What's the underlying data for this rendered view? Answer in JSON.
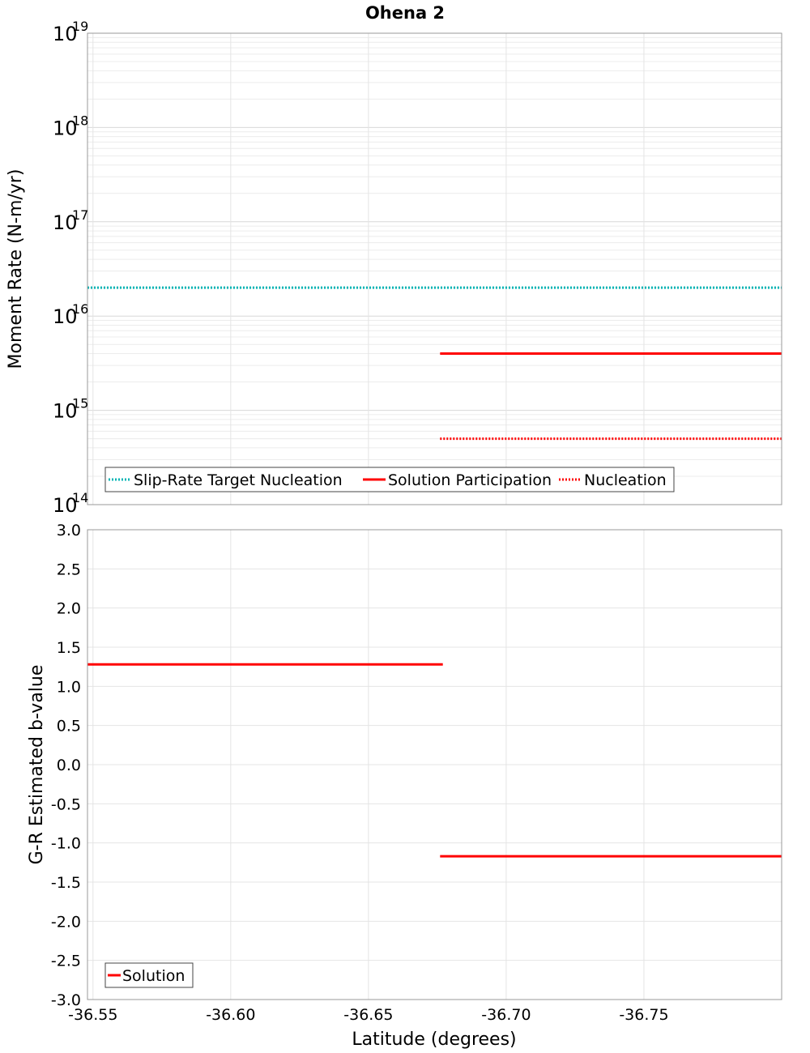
{
  "title": "Ohena 2",
  "chart_data": [
    {
      "type": "line",
      "ylabel": "Moment Rate (N-m/yr)",
      "yscale": "log",
      "ylim": [
        100000000000000.0,
        1e+19
      ],
      "xlim": [
        -36.548,
        -36.8
      ],
      "y_tick_base": "10",
      "y_tick_exponents": [
        "14",
        "15",
        "16",
        "17",
        "18",
        "19"
      ],
      "series": [
        {
          "name": "Slip-Rate Target Nucleation",
          "color": "#00b4b4",
          "style": "dotted",
          "segments": [
            {
              "x": [
                -36.548,
                -36.8
              ],
              "y": [
                2e+16,
                2e+16
              ]
            }
          ]
        },
        {
          "name": "Solution Participation",
          "color": "#ff0000",
          "style": "solid",
          "segments": [
            {
              "x": [
                -36.676,
                -36.8
              ],
              "y": [
                4000000000000000.0,
                4000000000000000.0
              ]
            }
          ]
        },
        {
          "name": "Nucleation",
          "color": "#ff0000",
          "style": "dotted",
          "segments": [
            {
              "x": [
                -36.676,
                -36.8
              ],
              "y": [
                500000000000000.0,
                500000000000000.0
              ]
            }
          ]
        }
      ],
      "legend_position": "bottom-left"
    },
    {
      "type": "line",
      "ylabel": "G-R Estimated b-value",
      "xlabel": "Latitude (degrees)",
      "ylim": [
        -3.0,
        3.0
      ],
      "xlim": [
        -36.548,
        -36.8
      ],
      "y_ticks": [
        "3.0",
        "2.5",
        "2.0",
        "1.5",
        "1.0",
        "0.5",
        "0.0",
        "-0.5",
        "-1.0",
        "-1.5",
        "-2.0",
        "-2.5",
        "-3.0"
      ],
      "x_ticks": [
        "-36.55",
        "-36.60",
        "-36.65",
        "-36.70",
        "-36.75"
      ],
      "series": [
        {
          "name": "Solution",
          "color": "#ff0000",
          "style": "solid",
          "segments": [
            {
              "x": [
                -36.548,
                -36.677
              ],
              "y": [
                1.28,
                1.28
              ]
            },
            {
              "x": [
                -36.676,
                -36.8
              ],
              "y": [
                -1.17,
                -1.17
              ]
            }
          ]
        }
      ],
      "legend_position": "bottom-left"
    }
  ]
}
